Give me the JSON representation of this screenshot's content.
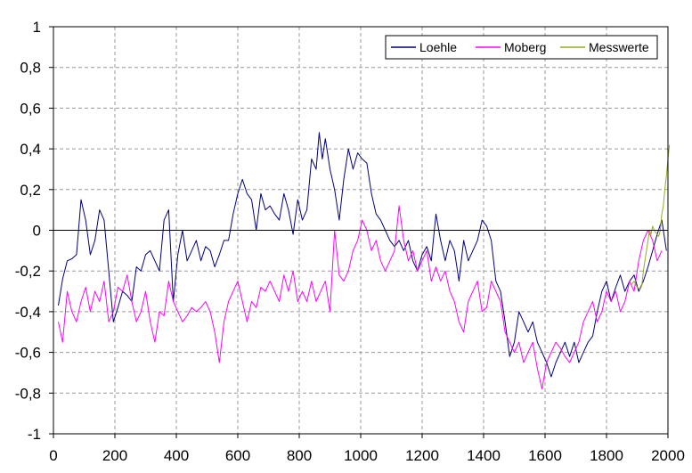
{
  "chart_data": {
    "type": "line",
    "title": "",
    "xlabel": "",
    "ylabel": "",
    "xlim": [
      0,
      2000
    ],
    "ylim": [
      -1,
      1
    ],
    "x_ticks": [
      0,
      200,
      400,
      600,
      800,
      1000,
      1200,
      1400,
      1600,
      1800,
      2000
    ],
    "x_tick_labels": [
      "0",
      "200",
      "400",
      "600",
      "800",
      "1000",
      "1200",
      "1400",
      "1600",
      "1800",
      "2000"
    ],
    "y_ticks": [
      -1,
      -0.8,
      -0.6,
      -0.4,
      -0.2,
      0,
      0.2,
      0.4,
      0.6,
      0.8,
      1
    ],
    "y_tick_labels": [
      "-1",
      "-0,8",
      "-0,6",
      "-0,4",
      "-0,2",
      "0",
      "0,2",
      "0,4",
      "0,6",
      "0,8",
      "1"
    ],
    "grid": true,
    "legend_position": "top-right",
    "series": [
      {
        "name": "Loehle",
        "color": "#000080",
        "points": [
          [
            16,
            -0.37
          ],
          [
            30,
            -0.24
          ],
          [
            45,
            -0.15
          ],
          [
            60,
            -0.14
          ],
          [
            75,
            -0.12
          ],
          [
            90,
            0.15
          ],
          [
            105,
            0.05
          ],
          [
            120,
            -0.12
          ],
          [
            135,
            -0.05
          ],
          [
            150,
            0.1
          ],
          [
            165,
            0.05
          ],
          [
            180,
            -0.2
          ],
          [
            195,
            -0.45
          ],
          [
            210,
            -0.38
          ],
          [
            225,
            -0.3
          ],
          [
            240,
            -0.32
          ],
          [
            255,
            -0.35
          ],
          [
            270,
            -0.18
          ],
          [
            285,
            -0.2
          ],
          [
            300,
            -0.12
          ],
          [
            315,
            -0.1
          ],
          [
            330,
            -0.15
          ],
          [
            345,
            -0.2
          ],
          [
            360,
            0.05
          ],
          [
            375,
            0.1
          ],
          [
            390,
            -0.35
          ],
          [
            405,
            -0.12
          ],
          [
            420,
            0.0
          ],
          [
            435,
            -0.15
          ],
          [
            450,
            -0.1
          ],
          [
            465,
            -0.05
          ],
          [
            480,
            -0.15
          ],
          [
            495,
            -0.08
          ],
          [
            510,
            -0.1
          ],
          [
            525,
            -0.18
          ],
          [
            540,
            -0.12
          ],
          [
            555,
            -0.05
          ],
          [
            570,
            -0.05
          ],
          [
            585,
            0.08
          ],
          [
            600,
            0.18
          ],
          [
            615,
            0.25
          ],
          [
            630,
            0.18
          ],
          [
            645,
            0.15
          ],
          [
            660,
            0.0
          ],
          [
            675,
            0.18
          ],
          [
            690,
            0.1
          ],
          [
            705,
            0.12
          ],
          [
            720,
            0.08
          ],
          [
            735,
            0.05
          ],
          [
            750,
            0.18
          ],
          [
            765,
            0.1
          ],
          [
            780,
            -0.02
          ],
          [
            795,
            0.15
          ],
          [
            810,
            0.05
          ],
          [
            825,
            0.1
          ],
          [
            840,
            0.35
          ],
          [
            855,
            0.3
          ],
          [
            865,
            0.48
          ],
          [
            875,
            0.35
          ],
          [
            885,
            0.45
          ],
          [
            900,
            0.3
          ],
          [
            915,
            0.2
          ],
          [
            930,
            0.05
          ],
          [
            945,
            0.25
          ],
          [
            960,
            0.4
          ],
          [
            975,
            0.3
          ],
          [
            990,
            0.38
          ],
          [
            1005,
            0.35
          ],
          [
            1020,
            0.33
          ],
          [
            1035,
            0.18
          ],
          [
            1050,
            0.08
          ],
          [
            1065,
            0.05
          ],
          [
            1080,
            0.0
          ],
          [
            1095,
            -0.05
          ],
          [
            1110,
            -0.08
          ],
          [
            1125,
            -0.05
          ],
          [
            1140,
            -0.1
          ],
          [
            1155,
            -0.05
          ],
          [
            1170,
            -0.15
          ],
          [
            1185,
            -0.2
          ],
          [
            1200,
            -0.12
          ],
          [
            1215,
            -0.08
          ],
          [
            1230,
            -0.15
          ],
          [
            1245,
            0.08
          ],
          [
            1260,
            -0.05
          ],
          [
            1275,
            -0.15
          ],
          [
            1290,
            -0.05
          ],
          [
            1305,
            -0.1
          ],
          [
            1320,
            -0.25
          ],
          [
            1335,
            -0.05
          ],
          [
            1350,
            -0.15
          ],
          [
            1365,
            -0.1
          ],
          [
            1380,
            -0.05
          ],
          [
            1395,
            0.05
          ],
          [
            1410,
            0.02
          ],
          [
            1425,
            -0.05
          ],
          [
            1440,
            -0.25
          ],
          [
            1455,
            -0.3
          ],
          [
            1470,
            -0.45
          ],
          [
            1485,
            -0.62
          ],
          [
            1500,
            -0.55
          ],
          [
            1515,
            -0.4
          ],
          [
            1530,
            -0.45
          ],
          [
            1545,
            -0.5
          ],
          [
            1560,
            -0.45
          ],
          [
            1575,
            -0.55
          ],
          [
            1590,
            -0.6
          ],
          [
            1605,
            -0.65
          ],
          [
            1620,
            -0.72
          ],
          [
            1635,
            -0.65
          ],
          [
            1650,
            -0.6
          ],
          [
            1665,
            -0.55
          ],
          [
            1680,
            -0.62
          ],
          [
            1695,
            -0.55
          ],
          [
            1710,
            -0.65
          ],
          [
            1725,
            -0.6
          ],
          [
            1740,
            -0.55
          ],
          [
            1755,
            -0.52
          ],
          [
            1770,
            -0.4
          ],
          [
            1785,
            -0.3
          ],
          [
            1800,
            -0.25
          ],
          [
            1815,
            -0.35
          ],
          [
            1830,
            -0.28
          ],
          [
            1845,
            -0.22
          ],
          [
            1860,
            -0.3
          ],
          [
            1875,
            -0.25
          ],
          [
            1890,
            -0.22
          ],
          [
            1905,
            -0.3
          ],
          [
            1920,
            -0.25
          ],
          [
            1935,
            -0.18
          ],
          [
            1950,
            -0.1
          ],
          [
            1965,
            -0.02
          ],
          [
            1980,
            0.05
          ],
          [
            1995,
            -0.1
          ]
        ]
      },
      {
        "name": "Moberg",
        "color": "#ff00ff",
        "points": [
          [
            16,
            -0.45
          ],
          [
            30,
            -0.55
          ],
          [
            45,
            -0.3
          ],
          [
            60,
            -0.4
          ],
          [
            75,
            -0.45
          ],
          [
            90,
            -0.35
          ],
          [
            105,
            -0.28
          ],
          [
            120,
            -0.4
          ],
          [
            135,
            -0.3
          ],
          [
            150,
            -0.35
          ],
          [
            165,
            -0.25
          ],
          [
            180,
            -0.45
          ],
          [
            195,
            -0.4
          ],
          [
            210,
            -0.28
          ],
          [
            225,
            -0.3
          ],
          [
            240,
            -0.22
          ],
          [
            255,
            -0.35
          ],
          [
            270,
            -0.45
          ],
          [
            285,
            -0.4
          ],
          [
            300,
            -0.3
          ],
          [
            315,
            -0.45
          ],
          [
            330,
            -0.55
          ],
          [
            345,
            -0.4
          ],
          [
            360,
            -0.42
          ],
          [
            375,
            -0.25
          ],
          [
            390,
            -0.35
          ],
          [
            405,
            -0.4
          ],
          [
            420,
            -0.45
          ],
          [
            435,
            -0.42
          ],
          [
            450,
            -0.38
          ],
          [
            465,
            -0.4
          ],
          [
            480,
            -0.38
          ],
          [
            495,
            -0.35
          ],
          [
            510,
            -0.4
          ],
          [
            525,
            -0.5
          ],
          [
            540,
            -0.65
          ],
          [
            555,
            -0.45
          ],
          [
            570,
            -0.35
          ],
          [
            585,
            -0.3
          ],
          [
            600,
            -0.25
          ],
          [
            615,
            -0.35
          ],
          [
            630,
            -0.45
          ],
          [
            645,
            -0.35
          ],
          [
            660,
            -0.38
          ],
          [
            675,
            -0.28
          ],
          [
            690,
            -0.3
          ],
          [
            705,
            -0.25
          ],
          [
            720,
            -0.3
          ],
          [
            735,
            -0.35
          ],
          [
            750,
            -0.22
          ],
          [
            765,
            -0.3
          ],
          [
            780,
            -0.2
          ],
          [
            795,
            -0.35
          ],
          [
            810,
            -0.3
          ],
          [
            825,
            -0.35
          ],
          [
            840,
            -0.25
          ],
          [
            855,
            -0.35
          ],
          [
            870,
            -0.3
          ],
          [
            885,
            -0.25
          ],
          [
            900,
            -0.4
          ],
          [
            915,
            0.0
          ],
          [
            930,
            -0.22
          ],
          [
            945,
            -0.25
          ],
          [
            960,
            -0.2
          ],
          [
            975,
            -0.1
          ],
          [
            990,
            -0.05
          ],
          [
            1005,
            0.05
          ],
          [
            1020,
            0.0
          ],
          [
            1035,
            -0.1
          ],
          [
            1050,
            -0.05
          ],
          [
            1065,
            -0.15
          ],
          [
            1080,
            -0.2
          ],
          [
            1095,
            -0.15
          ],
          [
            1110,
            -0.1
          ],
          [
            1125,
            0.12
          ],
          [
            1140,
            -0.05
          ],
          [
            1155,
            -0.15
          ],
          [
            1170,
            -0.1
          ],
          [
            1185,
            -0.2
          ],
          [
            1200,
            -0.15
          ],
          [
            1215,
            -0.1
          ],
          [
            1230,
            -0.25
          ],
          [
            1245,
            -0.18
          ],
          [
            1260,
            -0.25
          ],
          [
            1275,
            -0.2
          ],
          [
            1290,
            -0.3
          ],
          [
            1305,
            -0.35
          ],
          [
            1320,
            -0.45
          ],
          [
            1335,
            -0.5
          ],
          [
            1350,
            -0.35
          ],
          [
            1365,
            -0.3
          ],
          [
            1380,
            -0.25
          ],
          [
            1395,
            -0.4
          ],
          [
            1410,
            -0.38
          ],
          [
            1425,
            -0.25
          ],
          [
            1440,
            -0.3
          ],
          [
            1455,
            -0.35
          ],
          [
            1470,
            -0.5
          ],
          [
            1485,
            -0.55
          ],
          [
            1500,
            -0.6
          ],
          [
            1515,
            -0.55
          ],
          [
            1530,
            -0.65
          ],
          [
            1545,
            -0.6
          ],
          [
            1560,
            -0.55
          ],
          [
            1575,
            -0.68
          ],
          [
            1590,
            -0.78
          ],
          [
            1605,
            -0.65
          ],
          [
            1620,
            -0.6
          ],
          [
            1635,
            -0.55
          ],
          [
            1650,
            -0.58
          ],
          [
            1665,
            -0.62
          ],
          [
            1680,
            -0.65
          ],
          [
            1695,
            -0.6
          ],
          [
            1710,
            -0.55
          ],
          [
            1725,
            -0.45
          ],
          [
            1740,
            -0.4
          ],
          [
            1755,
            -0.35
          ],
          [
            1770,
            -0.45
          ],
          [
            1785,
            -0.4
          ],
          [
            1800,
            -0.3
          ],
          [
            1815,
            -0.35
          ],
          [
            1830,
            -0.3
          ],
          [
            1845,
            -0.4
          ],
          [
            1860,
            -0.35
          ],
          [
            1875,
            -0.25
          ],
          [
            1890,
            -0.3
          ],
          [
            1905,
            -0.15
          ],
          [
            1920,
            -0.05
          ],
          [
            1935,
            0.0
          ],
          [
            1950,
            -0.05
          ],
          [
            1965,
            -0.15
          ],
          [
            1980,
            -0.1
          ]
        ]
      },
      {
        "name": "Messwerte",
        "color": "#99aa22",
        "points": [
          [
            1880,
            -0.27
          ],
          [
            1890,
            -0.25
          ],
          [
            1900,
            -0.28
          ],
          [
            1910,
            -0.29
          ],
          [
            1915,
            -0.27
          ],
          [
            1920,
            -0.2
          ],
          [
            1925,
            -0.15
          ],
          [
            1930,
            -0.1
          ],
          [
            1935,
            -0.05
          ],
          [
            1940,
            0.0
          ],
          [
            1945,
            -0.02
          ],
          [
            1950,
            0.02
          ],
          [
            1955,
            0.0
          ],
          [
            1960,
            -0.01
          ],
          [
            1965,
            -0.02
          ],
          [
            1970,
            -0.03
          ],
          [
            1975,
            0.0
          ],
          [
            1980,
            0.08
          ],
          [
            1985,
            0.12
          ],
          [
            1990,
            0.2
          ],
          [
            1995,
            0.27
          ],
          [
            2000,
            0.35
          ],
          [
            2005,
            0.42
          ]
        ]
      }
    ]
  }
}
